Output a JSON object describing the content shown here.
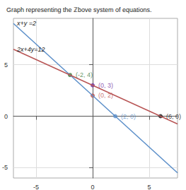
{
  "chart_data": {
    "type": "line",
    "title": "Graph representing the ℤbove system of equations.",
    "xlim": [
      -7,
      7.5
    ],
    "xticks": [
      -5,
      0,
      5
    ],
    "ylim": [
      -6,
      9.5
    ],
    "yticks": [
      -5,
      0,
      5
    ],
    "grid": true,
    "series": [
      {
        "name": "x+y =2",
        "type": "line",
        "color": "#5b8fc9",
        "x": [
          -7,
          7.5
        ],
        "values": [
          9,
          -5.5
        ]
      },
      {
        "name": "2x+4y=12",
        "type": "line",
        "color": "#b85555",
        "x": [
          -7,
          7.5
        ],
        "values": [
          6.5,
          -0.75
        ]
      },
      {
        "type": "scatter",
        "marker": "circle",
        "data_labels": true,
        "x": [
          -2,
          0,
          0,
          2,
          6
        ],
        "values": [
          4,
          3,
          2,
          0,
          0
        ],
        "colors": [
          "#3d7a3d",
          "#7030a0",
          "#b85555",
          "#5b8fc9",
          "#111111"
        ],
        "value_labels": [
          "(-2, 4)",
          "(0, 3)",
          "(0, 2)",
          "(2, 0)",
          "(6, 0)"
        ]
      }
    ]
  }
}
